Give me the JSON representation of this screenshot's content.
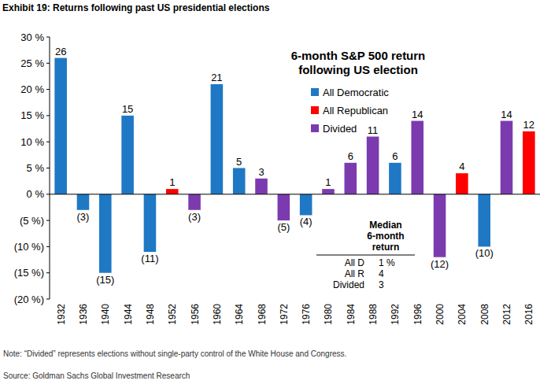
{
  "header": "Exhibit 19: Returns following past US presidential elections",
  "chart_data": {
    "type": "bar",
    "title": [
      "6-month S&P 500 return",
      "following US election"
    ],
    "categories": [
      "1932",
      "1936",
      "1940",
      "1944",
      "1948",
      "1952",
      "1956",
      "1960",
      "1964",
      "1968",
      "1972",
      "1976",
      "1980",
      "1984",
      "1988",
      "1992",
      "1996",
      "2000",
      "2004",
      "2008",
      "2012",
      "2016"
    ],
    "series": [
      {
        "name": "All Democratic",
        "color": "#1F78C4",
        "values": [
          26,
          -3,
          -15,
          15,
          -11,
          null,
          null,
          21,
          5,
          null,
          null,
          -4,
          null,
          null,
          null,
          6,
          null,
          null,
          null,
          -10,
          null,
          null
        ],
        "value_labels": [
          "26",
          "(3)",
          "(15)",
          "15",
          "(11)",
          null,
          null,
          "21",
          "5",
          null,
          null,
          "(4)",
          null,
          null,
          null,
          "6",
          null,
          null,
          null,
          "(10)",
          null,
          null
        ]
      },
      {
        "name": "All Republican",
        "color": "#FF0000",
        "values": [
          null,
          null,
          null,
          null,
          null,
          1,
          null,
          null,
          null,
          null,
          null,
          null,
          null,
          null,
          null,
          null,
          null,
          null,
          4,
          null,
          null,
          12
        ],
        "value_labels": [
          null,
          null,
          null,
          null,
          null,
          "1",
          null,
          null,
          null,
          null,
          null,
          null,
          null,
          null,
          null,
          null,
          null,
          null,
          "4",
          null,
          null,
          "12"
        ]
      },
      {
        "name": "Divided",
        "color": "#7B3BAE",
        "values": [
          null,
          null,
          null,
          null,
          null,
          null,
          -3,
          null,
          null,
          3,
          -5,
          null,
          1,
          6,
          11,
          null,
          14,
          -12,
          null,
          null,
          14,
          null
        ],
        "value_labels": [
          null,
          null,
          null,
          null,
          null,
          null,
          "(3)",
          null,
          null,
          "3",
          "(5)",
          null,
          "1",
          "6",
          "11",
          null,
          "14",
          "(12)",
          null,
          null,
          "14",
          null
        ]
      }
    ],
    "ylim": [
      -20,
      30
    ],
    "yticks": [
      {
        "value": 30,
        "label": "30 %"
      },
      {
        "value": 25,
        "label": "25 %"
      },
      {
        "value": 20,
        "label": "20 %"
      },
      {
        "value": 15,
        "label": "15 %"
      },
      {
        "value": 10,
        "label": "10 %"
      },
      {
        "value": 5,
        "label": "5 %"
      },
      {
        "value": 0,
        "label": "0 %"
      },
      {
        "value": -5,
        "label": "(5 %)"
      },
      {
        "value": -10,
        "label": "(10 %)"
      },
      {
        "value": -15,
        "label": "(15 %)"
      },
      {
        "value": -20,
        "label": "(20 %)"
      }
    ],
    "stacked": true,
    "data_labels": true,
    "legend": "top",
    "grid": false,
    "median_table": {
      "title": [
        "Median",
        "6-month",
        "return"
      ],
      "rows": [
        [
          "All D",
          "1 %"
        ],
        [
          "All R",
          "4"
        ],
        [
          "Divided",
          "3"
        ]
      ]
    }
  },
  "footer": {
    "note": "Note: “Divided” represents elections without single-party control of the White House and Congress.",
    "source": "Source: Goldman Sachs Global Investment Research"
  }
}
